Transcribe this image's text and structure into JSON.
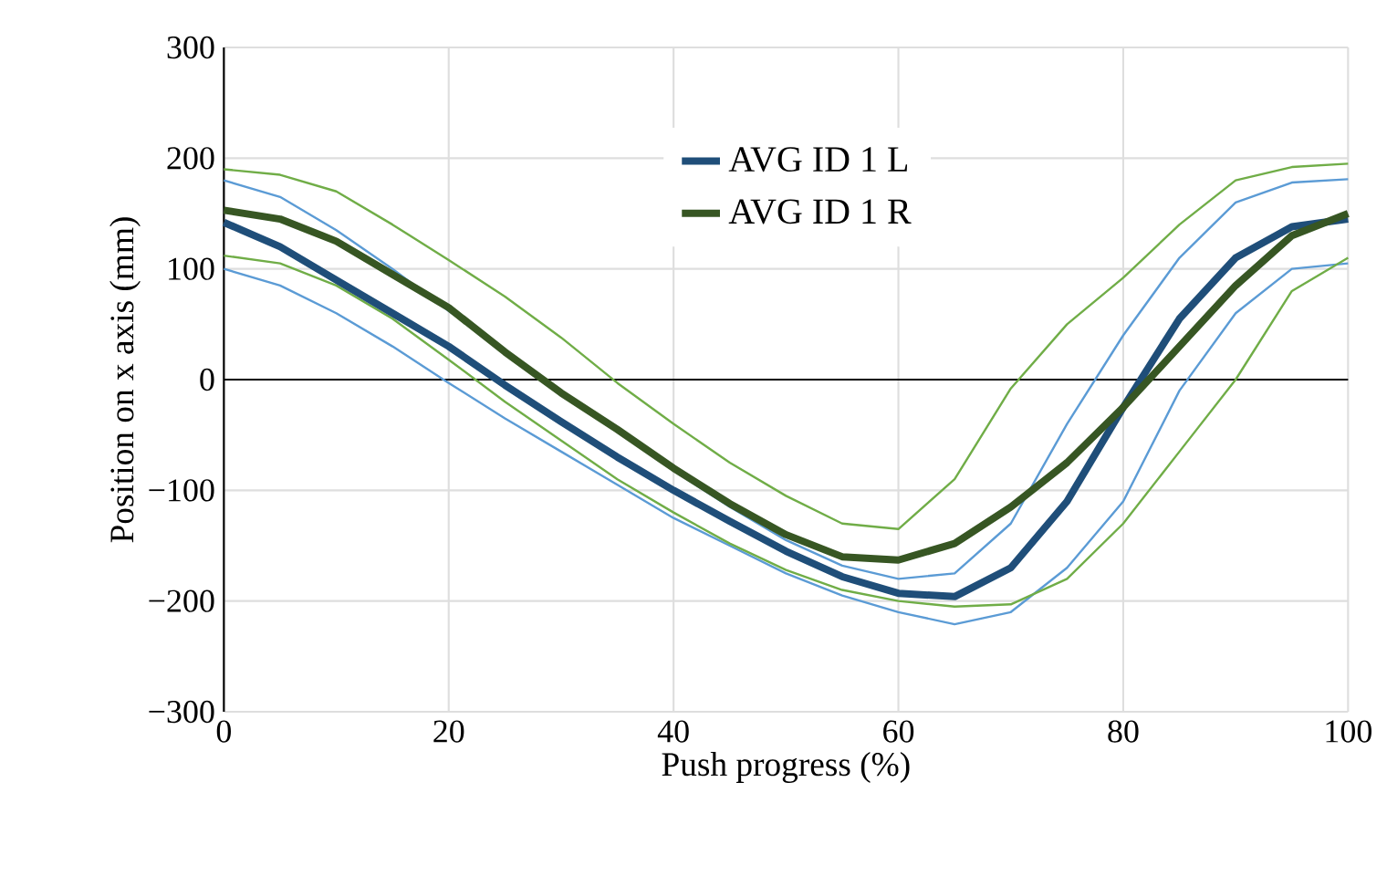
{
  "chart_data": {
    "type": "line",
    "xlabel": "Push progress (%)",
    "ylabel": "Position on x axis (mm)",
    "x": [
      0,
      5,
      10,
      15,
      20,
      25,
      30,
      35,
      40,
      45,
      50,
      55,
      60,
      65,
      70,
      75,
      80,
      85,
      90,
      95,
      100
    ],
    "series": [
      {
        "color": "#5b9bd5",
        "values": [
          180,
          165,
          135,
          100,
          62,
          27,
          -10,
          -47,
          -82,
          -115,
          -145,
          -168,
          -180,
          -175,
          -130,
          -40,
          40,
          110,
          160,
          178,
          181
        ]
      },
      {
        "color": "#5b9bd5",
        "values": [
          100,
          85,
          60,
          30,
          -3,
          -35,
          -65,
          -95,
          -125,
          -150,
          -175,
          -195,
          -210,
          -221,
          -210,
          -170,
          -110,
          -10,
          60,
          100,
          105
        ]
      },
      {
        "color": "#70ad47",
        "values": [
          190,
          185,
          170,
          140,
          108,
          75,
          38,
          -3,
          -40,
          -75,
          -105,
          -130,
          -135,
          -90,
          -8,
          50,
          92,
          140,
          180,
          192,
          195
        ]
      },
      {
        "color": "#70ad47",
        "values": [
          112,
          105,
          85,
          55,
          18,
          -20,
          -55,
          -90,
          -120,
          -148,
          -172,
          -190,
          -200,
          -205,
          -203,
          -180,
          -130,
          -65,
          0,
          80,
          110
        ]
      },
      {
        "name": "AVG ID 1 L",
        "color": "#1f4e79",
        "values": [
          142,
          120,
          90,
          60,
          30,
          -5,
          -38,
          -70,
          -100,
          -128,
          -155,
          -178,
          -193,
          -196,
          -170,
          -110,
          -25,
          55,
          110,
          138,
          145
        ]
      },
      {
        "name": "AVG ID 1 R",
        "color": "#375623",
        "values": [
          153,
          145,
          125,
          95,
          65,
          25,
          -12,
          -45,
          -80,
          -112,
          -140,
          -160,
          -163,
          -148,
          -115,
          -75,
          -25,
          30,
          85,
          130,
          150
        ]
      }
    ],
    "xlim": [
      0,
      100
    ],
    "xticks": [
      0,
      20,
      40,
      60,
      80,
      100
    ],
    "ylim": [
      -300,
      300
    ],
    "yticks": [
      {
        "value": -300,
        "label": "−300"
      },
      {
        "value": -200,
        "label": "−200"
      },
      {
        "value": -100,
        "label": "−100"
      },
      0,
      100,
      200,
      300
    ],
    "grid": true,
    "legend": "top",
    "marker": "none",
    "line_style": "solid"
  }
}
